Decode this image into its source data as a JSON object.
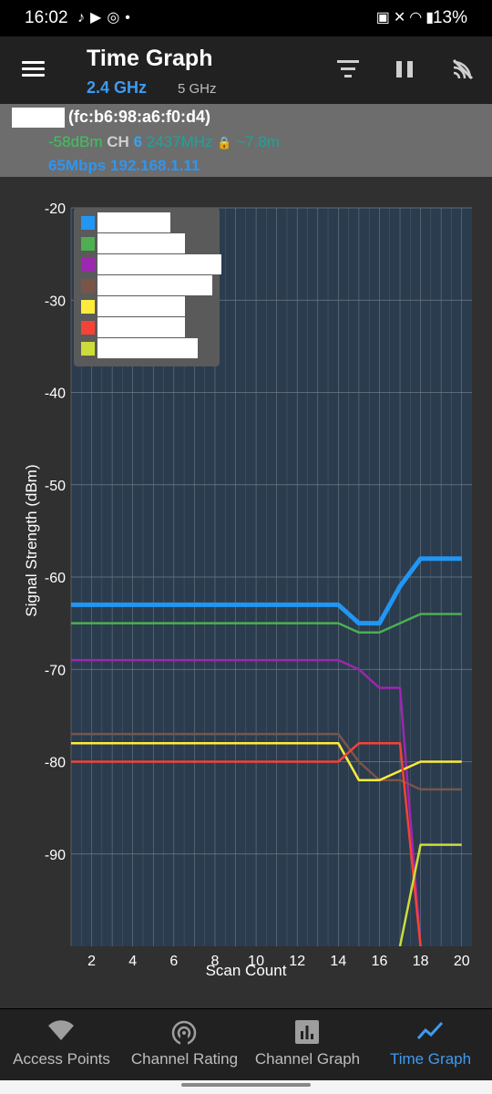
{
  "status_bar": {
    "time": "16:02",
    "left_icons": [
      "tiktok-icon",
      "youtube-icon",
      "cast-icon",
      "dot-icon"
    ],
    "right_icons": [
      "battery-saver-icon",
      "mute-icon",
      "wifi-icon",
      "signal-icon"
    ],
    "battery": "13%"
  },
  "app_bar": {
    "title": "Time Graph",
    "bands": [
      "2.4 GHz",
      "5 GHz"
    ],
    "active_band": "2.4 GHz",
    "actions": [
      "filter-icon",
      "pause-icon",
      "scan-icon"
    ]
  },
  "connection": {
    "mac": "(fc:b6:98:a6:f0:d4)",
    "signal": "-58dBm",
    "ch_label": "CH",
    "channel": "6",
    "frequency": "2437MHz",
    "distance": "~7.8m",
    "speed": "65Mbps",
    "ip": "192.168.1.11",
    "secured": true
  },
  "bottom_nav": {
    "items": [
      {
        "label": "Access Points",
        "icon": "wifi-icon"
      },
      {
        "label": "Channel Rating",
        "icon": "radar-icon"
      },
      {
        "label": "Channel Graph",
        "icon": "bar-chart-icon"
      },
      {
        "label": "Time Graph",
        "icon": "line-chart-icon"
      }
    ],
    "active": "Time Graph"
  },
  "chart_data": {
    "type": "line",
    "xlabel": "Scan Count",
    "ylabel": "Signal Strength (dBm)",
    "xlim": [
      1,
      20
    ],
    "ylim": [
      -100,
      -20
    ],
    "xticks": [
      2,
      4,
      6,
      8,
      10,
      12,
      14,
      16,
      18,
      20
    ],
    "yticks": [
      -20,
      -30,
      -40,
      -50,
      -60,
      -70,
      -80,
      -90
    ],
    "grid": true,
    "legend_position": "top-left",
    "series": [
      {
        "color": "#2196f3",
        "x": [
          1,
          2,
          3,
          4,
          5,
          6,
          7,
          8,
          9,
          10,
          11,
          12,
          13,
          14,
          15,
          16,
          17,
          18,
          19,
          20
        ],
        "y": [
          -63,
          -63,
          -63,
          -63,
          -63,
          -63,
          -63,
          -63,
          -63,
          -63,
          -63,
          -63,
          -63,
          -63,
          -65,
          -65,
          -61,
          -58,
          -58,
          -58
        ],
        "bold": true
      },
      {
        "color": "#4caf50",
        "x": [
          1,
          2,
          3,
          4,
          5,
          6,
          7,
          8,
          9,
          10,
          11,
          12,
          13,
          14,
          15,
          16,
          17,
          18,
          19,
          20
        ],
        "y": [
          -65,
          -65,
          -65,
          -65,
          -65,
          -65,
          -65,
          -65,
          -65,
          -65,
          -65,
          -65,
          -65,
          -65,
          -66,
          -66,
          -65,
          -64,
          -64,
          -64
        ]
      },
      {
        "color": "#9c27b0",
        "x": [
          1,
          2,
          3,
          4,
          5,
          6,
          7,
          8,
          9,
          10,
          11,
          12,
          13,
          14,
          15,
          16,
          17,
          18
        ],
        "y": [
          -69,
          -69,
          -69,
          -69,
          -69,
          -69,
          -69,
          -69,
          -69,
          -69,
          -69,
          -69,
          -69,
          -69,
          -70,
          -72,
          -72,
          -100
        ]
      },
      {
        "color": "#795548",
        "x": [
          1,
          2,
          3,
          4,
          5,
          6,
          7,
          8,
          9,
          10,
          11,
          12,
          13,
          14,
          15,
          16,
          17,
          18,
          19,
          20
        ],
        "y": [
          -77,
          -77,
          -77,
          -77,
          -77,
          -77,
          -77,
          -77,
          -77,
          -77,
          -77,
          -77,
          -77,
          -77,
          -80,
          -82,
          -82,
          -83,
          -83,
          -83
        ]
      },
      {
        "color": "#ffeb3b",
        "x": [
          1,
          2,
          3,
          4,
          5,
          6,
          7,
          8,
          9,
          10,
          11,
          12,
          13,
          14,
          15,
          16,
          17,
          18,
          19,
          20
        ],
        "y": [
          -78,
          -78,
          -78,
          -78,
          -78,
          -78,
          -78,
          -78,
          -78,
          -78,
          -78,
          -78,
          -78,
          -78,
          -82,
          -82,
          -81,
          -80,
          -80,
          -80
        ]
      },
      {
        "color": "#f44336",
        "x": [
          1,
          2,
          3,
          4,
          5,
          6,
          7,
          8,
          9,
          10,
          11,
          12,
          13,
          14,
          15,
          16,
          17,
          18
        ],
        "y": [
          -80,
          -80,
          -80,
          -80,
          -80,
          -80,
          -80,
          -80,
          -80,
          -80,
          -80,
          -80,
          -80,
          -80,
          -78,
          -78,
          -78,
          -100
        ]
      },
      {
        "color": "#cddc39",
        "x": [
          17,
          18,
          19,
          20
        ],
        "y": [
          -100,
          -89,
          -89,
          -89
        ]
      }
    ]
  }
}
